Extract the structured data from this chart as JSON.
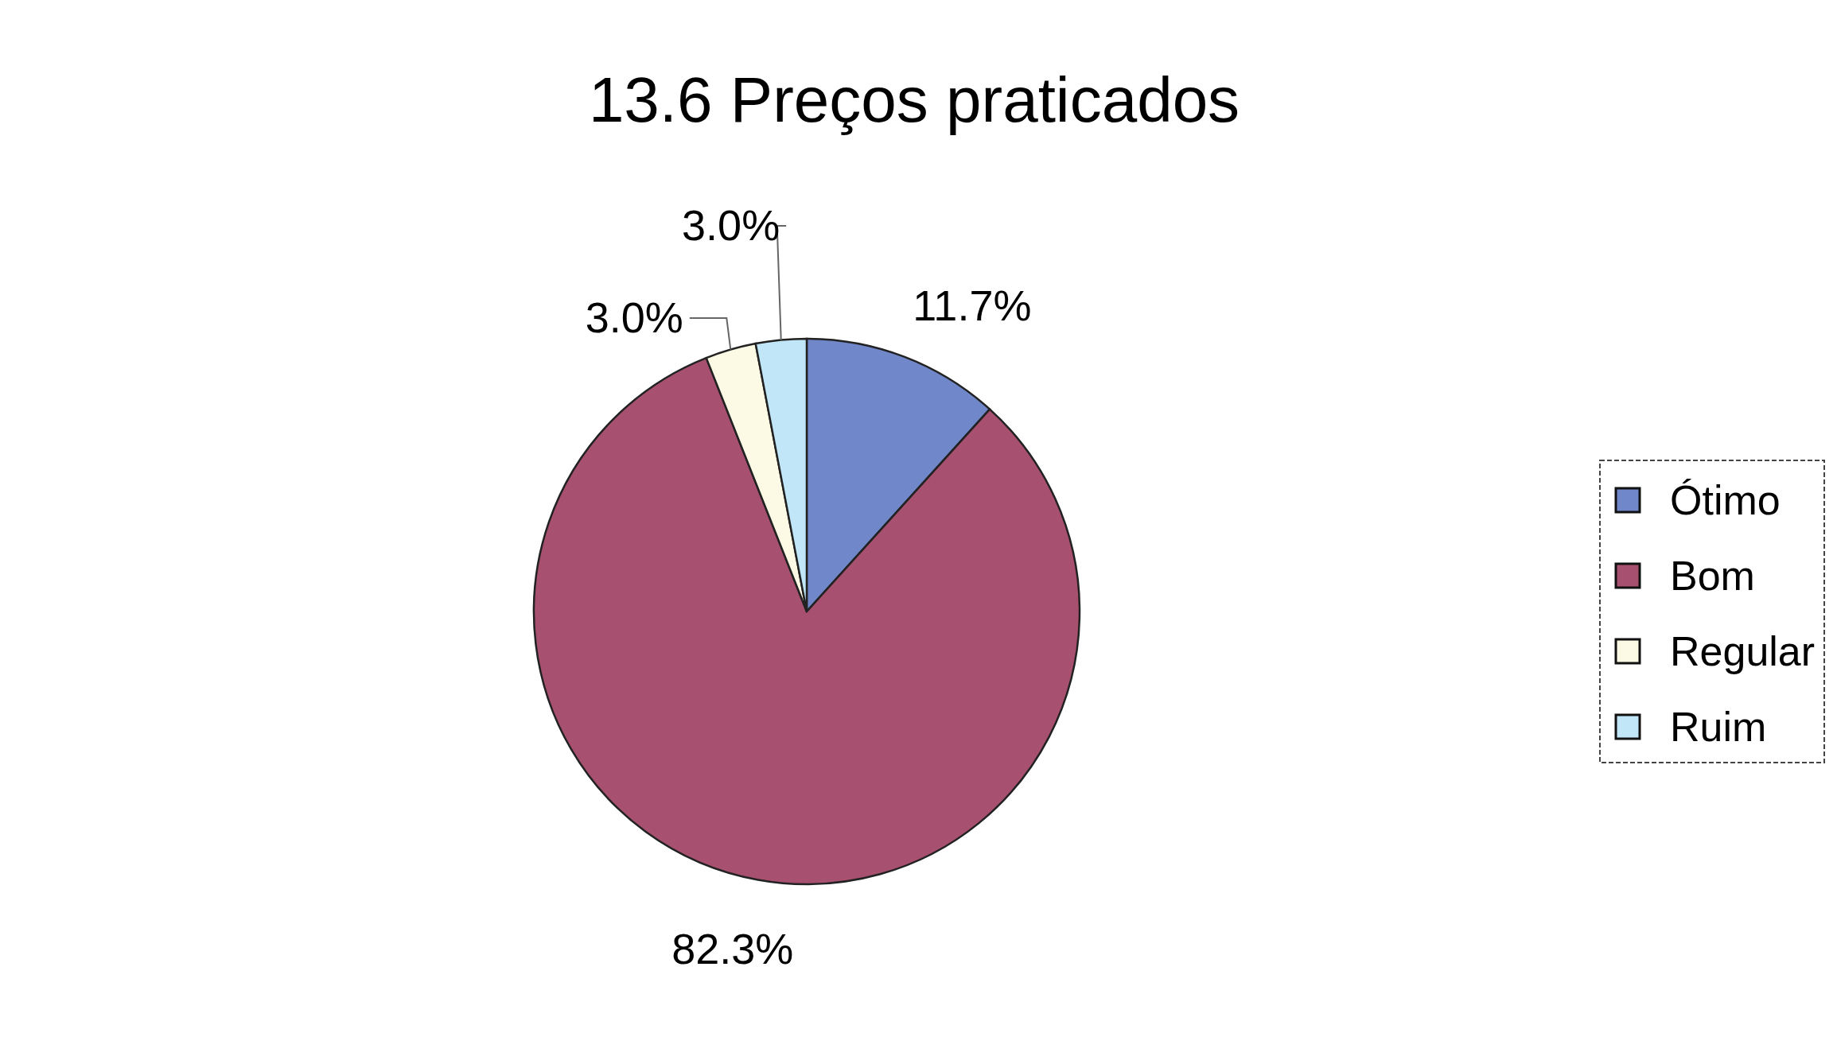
{
  "chart_data": {
    "type": "pie",
    "title": "13.6  Preços praticados",
    "categories": [
      "Ótimo",
      "Bom",
      "Regular",
      "Ruim"
    ],
    "values": [
      11.7,
      82.3,
      3.0,
      3.0
    ],
    "colors": [
      "#7087c9",
      "#a8506f",
      "#fcf9e4",
      "#c0e6f7"
    ],
    "value_labels": [
      "11.7%",
      "82.3%",
      "3.0%",
      "3.0%"
    ],
    "legend": "right"
  }
}
